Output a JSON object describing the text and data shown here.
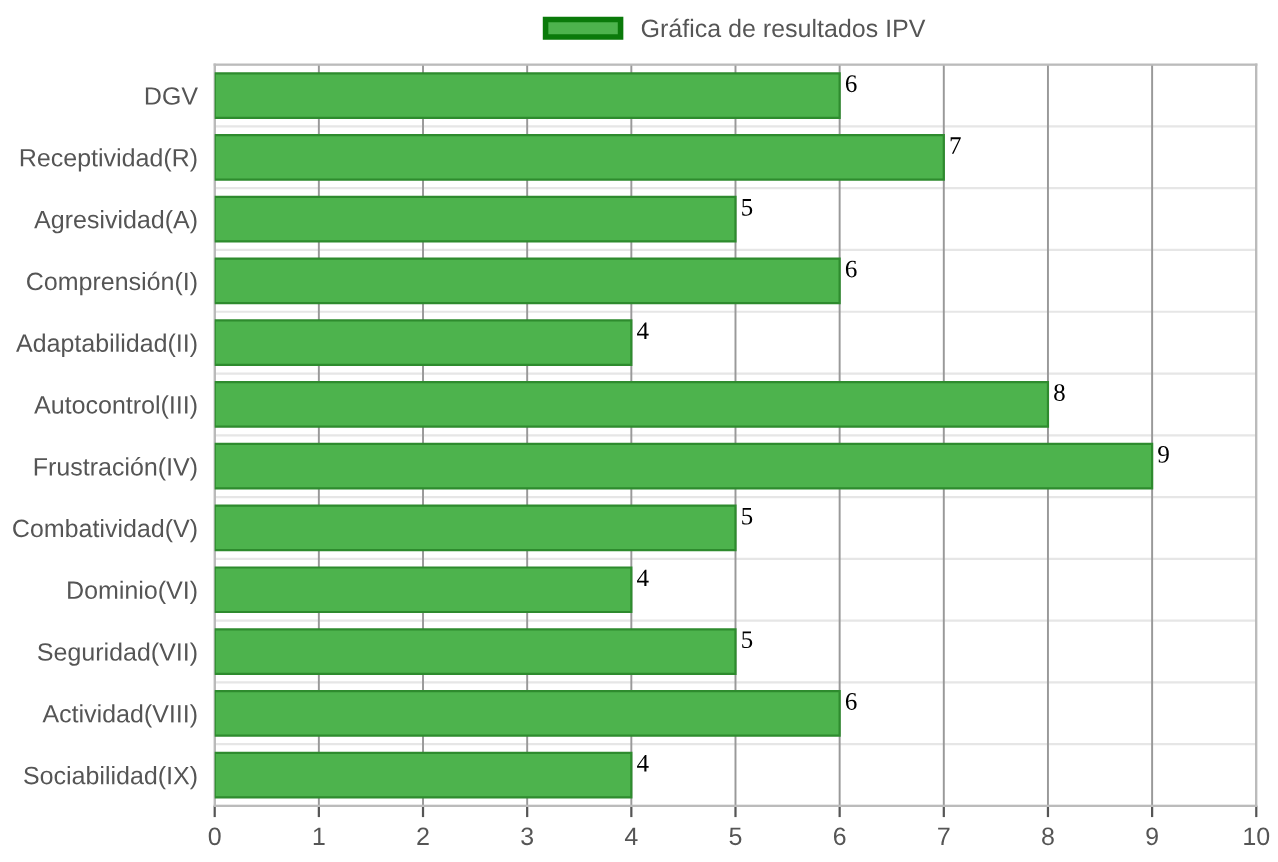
{
  "chart_data": {
    "type": "bar",
    "orientation": "horizontal",
    "categories": [
      "DGV",
      "Receptividad(R)",
      "Agresividad(A)",
      "Comprensión(I)",
      "Adaptabilidad(II)",
      "Autocontrol(III)",
      "Frustración(IV)",
      "Combatividad(V)",
      "Dominio(VI)",
      "Seguridad(VII)",
      "Actividad(VIII)",
      "Sociabilidad(IX)"
    ],
    "series": [
      {
        "name": "Gráfica de resultados IPV",
        "color": "#4db34d",
        "values": [
          6,
          7,
          5,
          6,
          4,
          8,
          9,
          5,
          4,
          5,
          6,
          4
        ]
      }
    ],
    "xlim": [
      0,
      10
    ],
    "xticks": [
      0,
      1,
      2,
      3,
      4,
      5,
      6,
      7,
      8,
      9,
      10
    ],
    "data_labels": true,
    "grid": true,
    "legend": "top"
  }
}
